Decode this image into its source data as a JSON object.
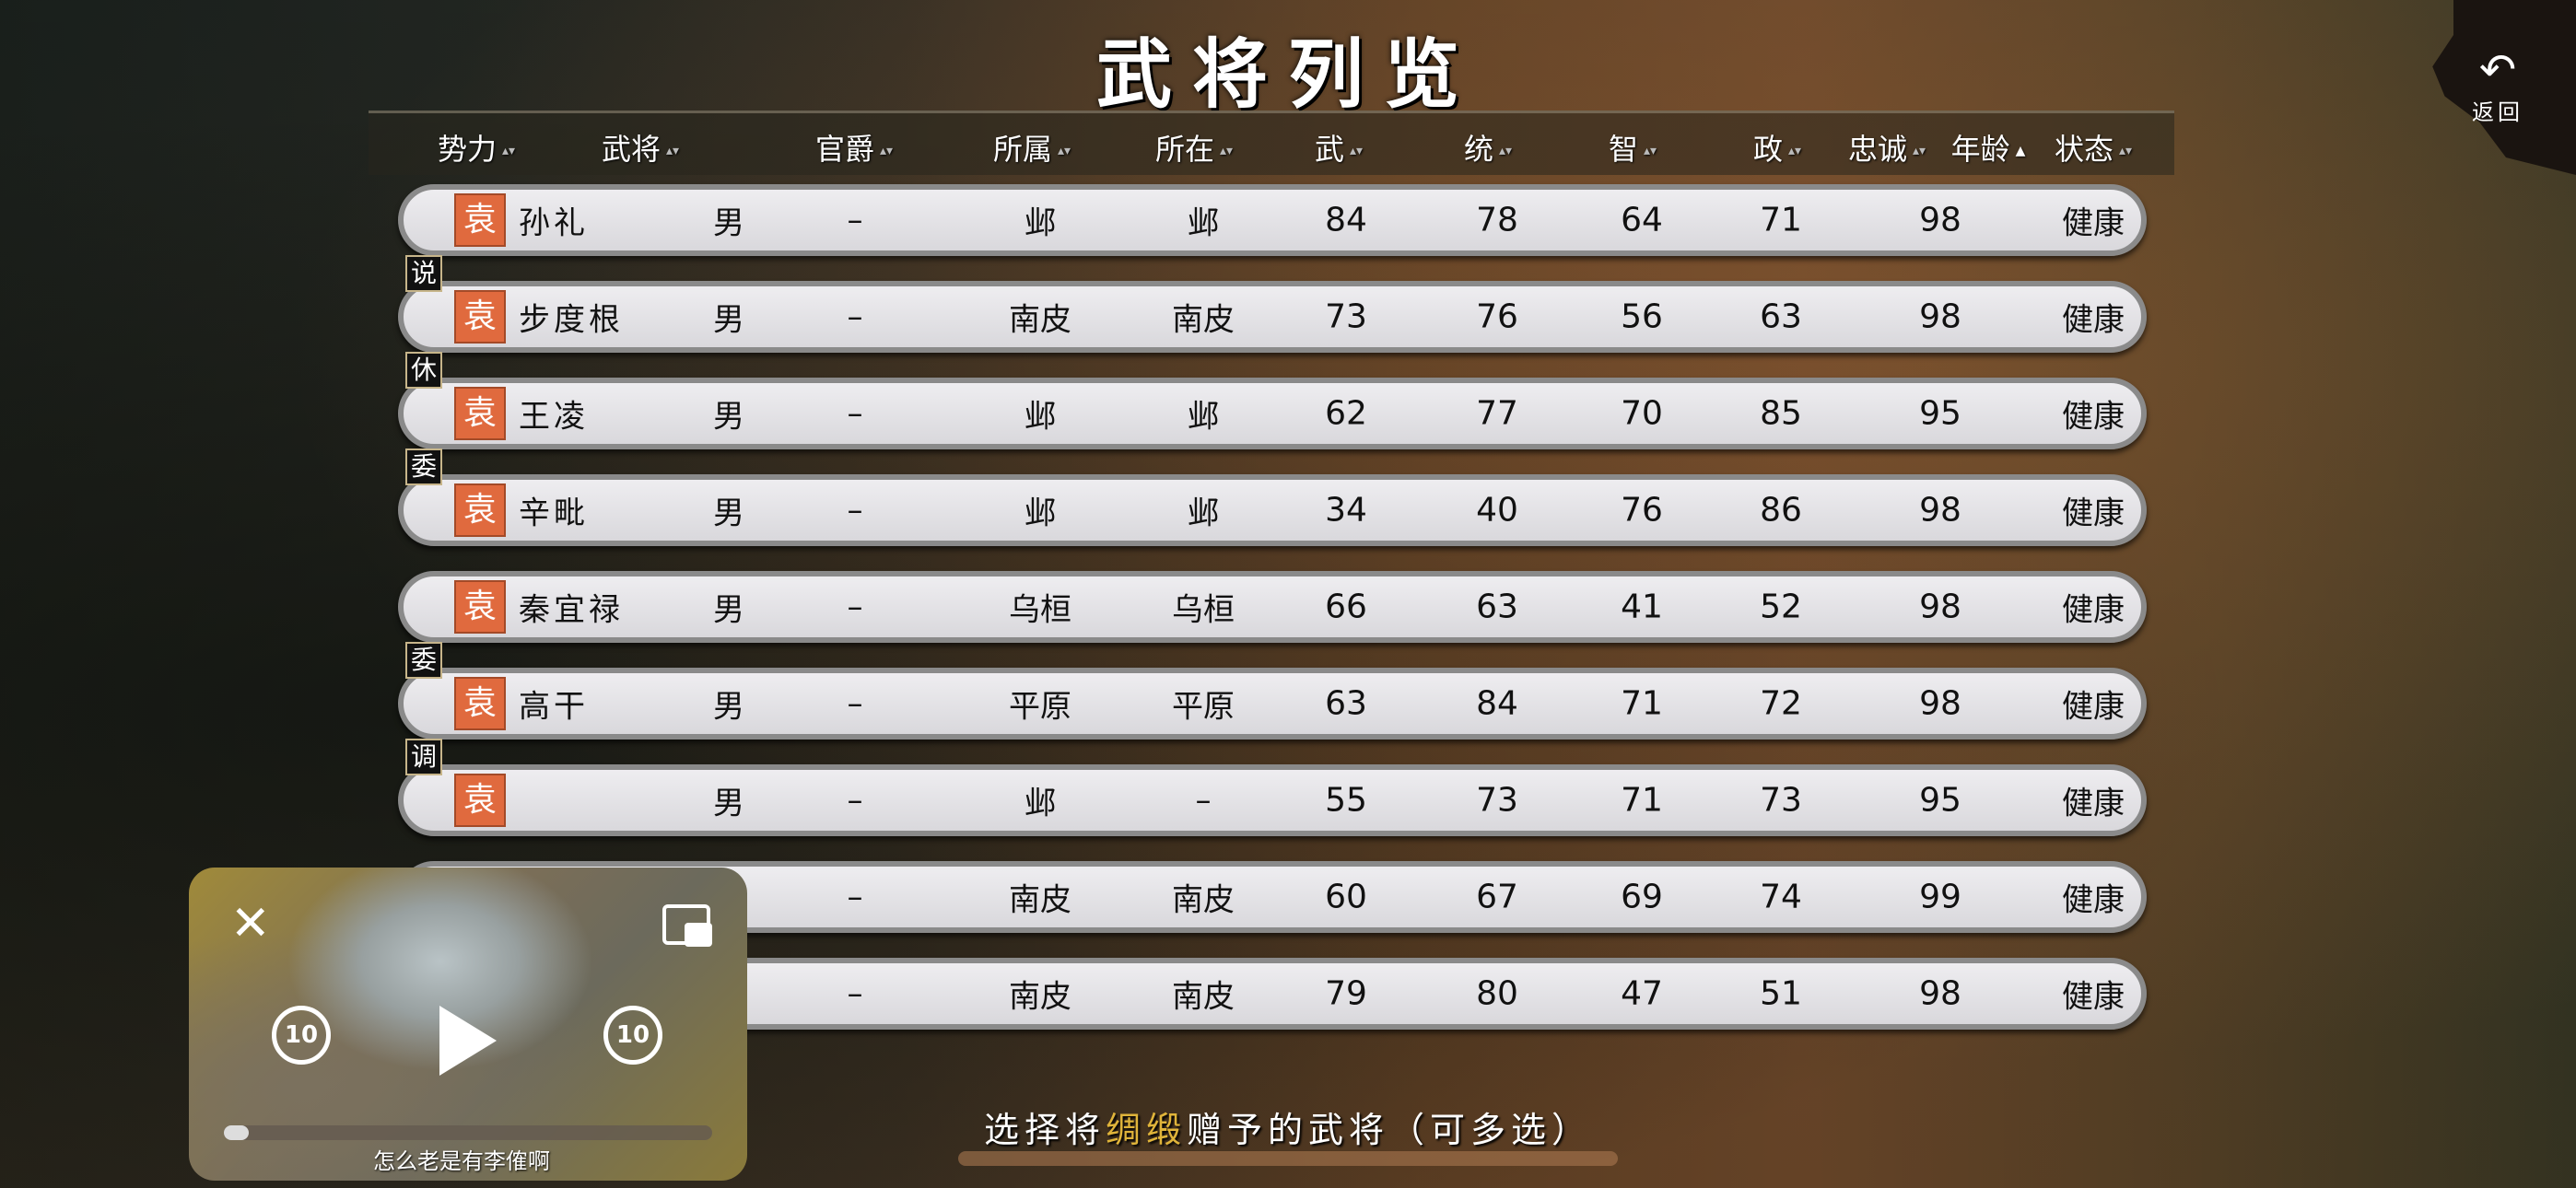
{
  "title": "武将列览",
  "back": {
    "icon": "undo-arrow-icon",
    "label": "返回"
  },
  "columns": [
    "势力",
    "武将",
    "官爵",
    "所属",
    "所在",
    "武",
    "统",
    "智",
    "政",
    "忠诚",
    "年龄",
    "状态"
  ],
  "sort_active": "年龄",
  "rows": [
    {
      "tag": "",
      "faction": "袁",
      "name": "孙礼",
      "gender": "男",
      "rank": "–",
      "belong": "邺",
      "location": "邺",
      "war": "84",
      "lead": "78",
      "int": "64",
      "pol": "71",
      "age": "98",
      "status": "健康"
    },
    {
      "tag": "说",
      "faction": "袁",
      "name": "步度根",
      "gender": "男",
      "rank": "–",
      "belong": "南皮",
      "location": "南皮",
      "war": "73",
      "lead": "76",
      "int": "56",
      "pol": "63",
      "age": "98",
      "status": "健康"
    },
    {
      "tag": "休",
      "faction": "袁",
      "name": "王凌",
      "gender": "男",
      "rank": "–",
      "belong": "邺",
      "location": "邺",
      "war": "62",
      "lead": "77",
      "int": "70",
      "pol": "85",
      "age": "95",
      "status": "健康"
    },
    {
      "tag": "委",
      "faction": "袁",
      "name": "辛毗",
      "gender": "男",
      "rank": "–",
      "belong": "邺",
      "location": "邺",
      "war": "34",
      "lead": "40",
      "int": "76",
      "pol": "86",
      "age": "98",
      "status": "健康"
    },
    {
      "tag": "",
      "faction": "袁",
      "name": "秦宜禄",
      "gender": "男",
      "rank": "–",
      "belong": "乌桓",
      "location": "乌桓",
      "war": "66",
      "lead": "63",
      "int": "41",
      "pol": "52",
      "age": "98",
      "status": "健康"
    },
    {
      "tag": "委",
      "faction": "袁",
      "name": "高干",
      "gender": "男",
      "rank": "–",
      "belong": "平原",
      "location": "平原",
      "war": "63",
      "lead": "84",
      "int": "71",
      "pol": "72",
      "age": "98",
      "status": "健康"
    },
    {
      "tag": "调",
      "faction": "袁",
      "name": "",
      "gender": "男",
      "rank": "–",
      "belong": "邺",
      "location": "–",
      "war": "55",
      "lead": "73",
      "int": "71",
      "pol": "73",
      "age": "95",
      "status": "健康"
    },
    {
      "tag": "",
      "faction": "",
      "name": "",
      "gender": "",
      "rank": "–",
      "belong": "南皮",
      "location": "南皮",
      "war": "60",
      "lead": "67",
      "int": "69",
      "pol": "74",
      "age": "99",
      "status": "健康"
    },
    {
      "tag": "",
      "faction": "",
      "name": "",
      "gender": "",
      "rank": "–",
      "belong": "南皮",
      "location": "南皮",
      "war": "79",
      "lead": "80",
      "int": "47",
      "pol": "51",
      "age": "98",
      "status": "健康"
    }
  ],
  "video": {
    "caption": "怎么老是有李傕啊",
    "progress": 0.05,
    "skip_seconds": "10",
    "icons": [
      "close-icon",
      "pip-icon",
      "rewind-10-icon",
      "play-icon",
      "forward-10-icon"
    ]
  },
  "hint": {
    "before": "选择将",
    "item": "绸缎",
    "after": "赠予的武将（可多选）"
  },
  "colors": {
    "faction": "#e06a3e",
    "highlight": "#e0b43a"
  }
}
